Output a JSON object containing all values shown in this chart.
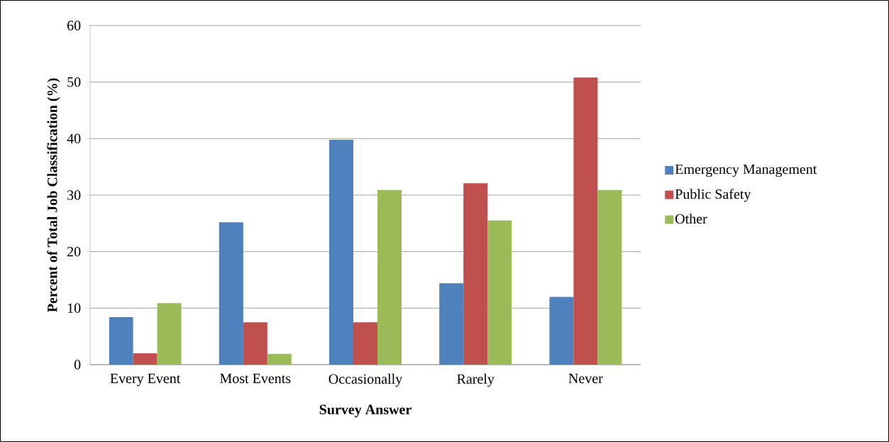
{
  "chart_data": {
    "type": "bar",
    "xlabel": "Survey Answer",
    "ylabel": "Percent of Total Job Classification (%)",
    "categories": [
      "Every Event",
      "Most Events",
      "Occasionally",
      "Rarely",
      "Never"
    ],
    "series": [
      {
        "name": "Emergency Management",
        "color": "#4f81bd",
        "values": [
          8.4,
          25.2,
          39.8,
          14.4,
          12.0
        ]
      },
      {
        "name": "Public Safety",
        "color": "#c0504d",
        "values": [
          2.0,
          7.5,
          7.5,
          32.1,
          50.8
        ]
      },
      {
        "name": "Other",
        "color": "#9bbb59",
        "values": [
          10.9,
          1.9,
          30.9,
          25.5,
          30.9
        ]
      }
    ],
    "ylim": [
      0,
      60
    ],
    "yticks": [
      0,
      10,
      20,
      30,
      40,
      50,
      60
    ],
    "grid": "y",
    "legend": "right"
  }
}
